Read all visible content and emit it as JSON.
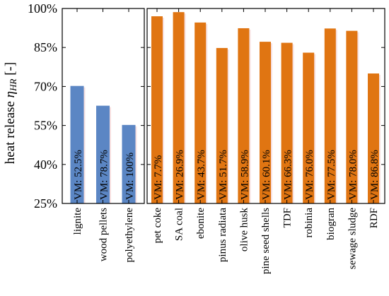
{
  "chart_data": [
    {
      "type": "bar",
      "panel": "left",
      "ylabel": "heat release η_HR [-]",
      "ylabel_main": "heat release ",
      "ylabel_eta": "η",
      "ylabel_sub": "HR",
      "ylabel_unit": " [-]",
      "yticks": [
        "25%",
        "40%",
        "55%",
        "70%",
        "85%",
        "100%"
      ],
      "ylim": [
        25,
        100
      ],
      "color": "#5b86c4",
      "categories": [
        "lignite",
        "wood pellets",
        "polyethylene"
      ],
      "values": [
        70.2,
        62.6,
        55.2
      ],
      "bar_labels": [
        "VM: 52.5%",
        "VM: 78.7%",
        "VM: 100%"
      ]
    },
    {
      "type": "bar",
      "panel": "right",
      "ylim": [
        25,
        100
      ],
      "color": "#e07512",
      "categories": [
        "pet coke",
        "SA coal",
        "ebonite",
        "pinus radiata",
        "olive husk",
        "pine seed shells",
        "TDF",
        "robinia",
        "biogran",
        "sewage sludge",
        "RDF"
      ],
      "values": [
        97.0,
        98.6,
        94.6,
        84.8,
        92.4,
        87.2,
        86.8,
        83.0,
        92.3,
        91.4,
        75.0
      ],
      "bar_labels": [
        "VM: 7.7%",
        "VM: 26.9%",
        "VM: 43.7%",
        "VM: 51.7%",
        "VM: 58.9%",
        "VM: 60.1%",
        "VM: 66.3%",
        "VM: 76.0%",
        "VM: 77.5%",
        "VM: 78.0%",
        "VM: 86.8%"
      ]
    }
  ]
}
